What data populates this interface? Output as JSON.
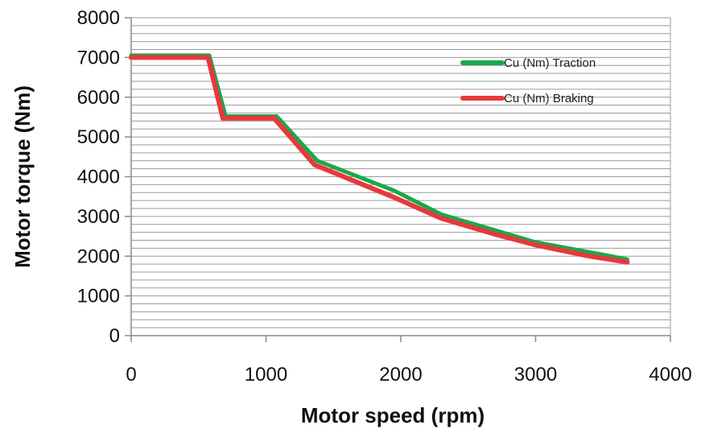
{
  "chart_data": {
    "type": "line",
    "xlabel": "Motor  speed (rpm)",
    "ylabel": "Motor  torque (Nm)",
    "xlim": [
      0,
      4000
    ],
    "ylim": [
      0,
      8000
    ],
    "x_ticks": [
      "0",
      "1000",
      "2000",
      "3000",
      "4000"
    ],
    "y_ticks": [
      "0",
      "1000",
      "2000",
      "3000",
      "4000",
      "5000",
      "6000",
      "7000",
      "8000"
    ],
    "grid": true,
    "legend_position": "top-right",
    "series": [
      {
        "name": "Cu (Nm) Traction",
        "color": "#1aa84a",
        "points": [
          [
            0,
            7050
          ],
          [
            580,
            7050
          ],
          [
            700,
            5520
          ],
          [
            1080,
            5520
          ],
          [
            1380,
            4400
          ],
          [
            1950,
            3650
          ],
          [
            2300,
            3050
          ],
          [
            2700,
            2650
          ],
          [
            3000,
            2350
          ],
          [
            3400,
            2100
          ],
          [
            3680,
            1920
          ]
        ]
      },
      {
        "name": "Cu (Nm) Braking",
        "color": "#e8383c",
        "points": [
          [
            0,
            7000
          ],
          [
            570,
            7000
          ],
          [
            680,
            5470
          ],
          [
            1060,
            5470
          ],
          [
            1360,
            4300
          ],
          [
            1950,
            3480
          ],
          [
            2300,
            2950
          ],
          [
            2700,
            2550
          ],
          [
            3000,
            2280
          ],
          [
            3400,
            2000
          ],
          [
            3680,
            1850
          ]
        ]
      }
    ]
  }
}
